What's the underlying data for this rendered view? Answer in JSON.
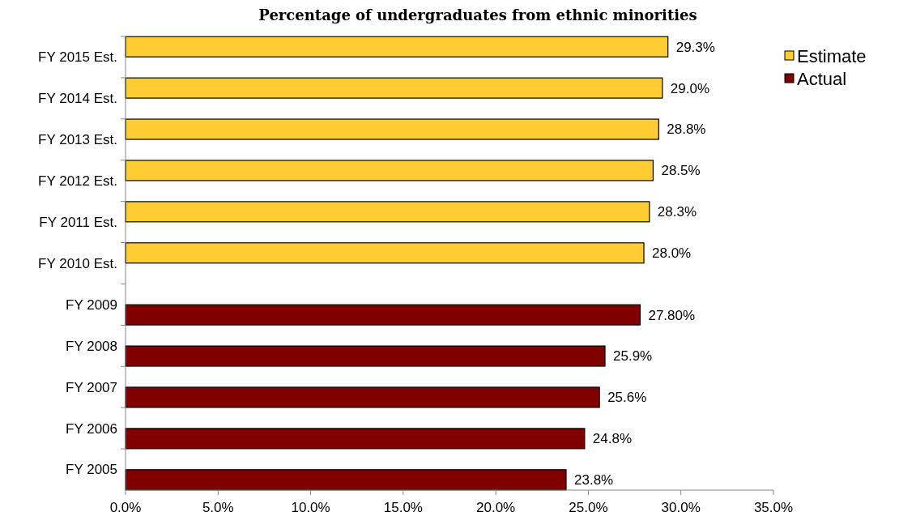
{
  "chart_data": {
    "type": "bar",
    "orientation": "horizontal",
    "title": "Percentage of undergraduates from ethnic minorities",
    "categories": [
      "FY 2015 Est.",
      "FY 2014 Est.",
      "FY 2013 Est.",
      "FY 2012 Est.",
      "FY 2011 Est.",
      "FY 2010 Est.",
      "FY 2009",
      "FY 2008",
      "FY 2007",
      "FY 2006",
      "FY 2005"
    ],
    "series": [
      {
        "name": "Estimate",
        "color": "#ffcc33",
        "values": [
          29.3,
          29.0,
          28.8,
          28.5,
          28.3,
          28.0,
          null,
          null,
          null,
          null,
          null
        ],
        "value_labels": [
          "29.3%",
          "29.0%",
          "28.8%",
          "28.5%",
          "28.3%",
          "28.0%",
          null,
          null,
          null,
          null,
          null
        ]
      },
      {
        "name": "Actual",
        "color": "#800000",
        "values": [
          null,
          null,
          null,
          null,
          null,
          null,
          27.8,
          25.9,
          25.6,
          24.8,
          23.8
        ],
        "value_labels": [
          null,
          null,
          null,
          null,
          null,
          null,
          "27.80%",
          "25.9%",
          "25.6%",
          "24.8%",
          "23.8%"
        ]
      }
    ],
    "xlim": [
      0,
      35
    ],
    "xticks": [
      {
        "value": 0,
        "label": "0.0%"
      },
      {
        "value": 5,
        "label": "5.0%"
      },
      {
        "value": 10,
        "label": "10.0%"
      },
      {
        "value": 15,
        "label": "15.0%"
      },
      {
        "value": 20,
        "label": "20.0%"
      },
      {
        "value": 25,
        "label": "25.0%"
      },
      {
        "value": 30,
        "label": "30.0%"
      },
      {
        "value": 35,
        "label": "35.0%"
      }
    ],
    "legend": "right",
    "grid": false
  }
}
